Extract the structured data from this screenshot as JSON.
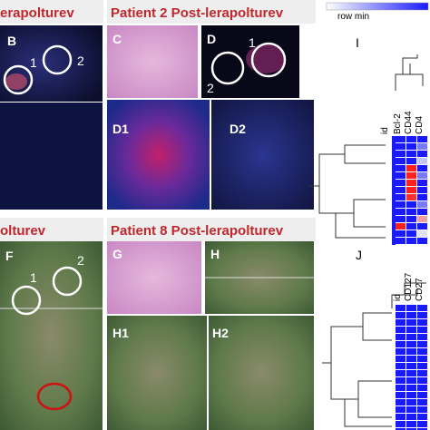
{
  "headers": [
    "erapolturev",
    "Patient 2 Post-lerapolturev",
    "olturev",
    "Patient 8 Post-lerapolturev"
  ],
  "panels": {
    "B": {
      "label": "B",
      "regions": [
        "1",
        "2"
      ]
    },
    "C": {
      "label": "C"
    },
    "D": {
      "label": "D",
      "regions": [
        "1",
        "2"
      ]
    },
    "D1": {
      "label": "D1"
    },
    "D2": {
      "label": "D2"
    },
    "F": {
      "label": "F",
      "regions": [
        "1",
        "2"
      ]
    },
    "G": {
      "label": "G"
    },
    "H": {
      "label": "H"
    },
    "H1": {
      "label": "H1"
    },
    "H2": {
      "label": "H2"
    }
  },
  "heatmaps": {
    "legend": "row min",
    "I": {
      "label": "I",
      "id": "id",
      "markers": [
        "Bcl-2",
        "CD44",
        "CD4"
      ]
    },
    "J": {
      "label": "J",
      "id": "id",
      "markers": [
        "CD127",
        "CD27"
      ]
    }
  }
}
